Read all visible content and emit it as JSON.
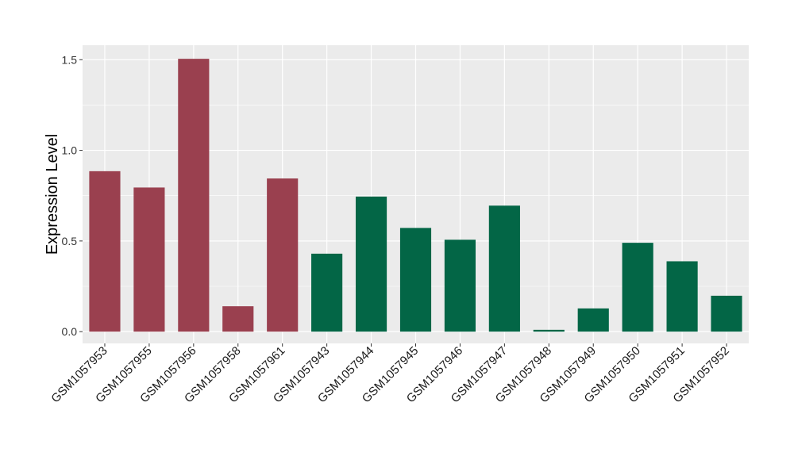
{
  "chart_data": {
    "type": "bar",
    "title": "",
    "xlabel": "",
    "ylabel": "Expression Level",
    "ylim": [
      -0.065,
      1.58
    ],
    "y_ticks": [
      0.0,
      0.5,
      1.0,
      1.5
    ],
    "y_tick_labels": [
      "0.0",
      "0.5",
      "1.0",
      "1.5"
    ],
    "grid": true,
    "categories": [
      "GSM1057953",
      "GSM1057955",
      "GSM1057956",
      "GSM1057958",
      "GSM1057961",
      "GSM1057943",
      "GSM1057944",
      "GSM1057945",
      "GSM1057946",
      "GSM1057947",
      "GSM1057948",
      "GSM1057949",
      "GSM1057950",
      "GSM1057951",
      "GSM1057952"
    ],
    "values": [
      0.885,
      0.795,
      1.505,
      0.14,
      0.845,
      0.43,
      0.745,
      0.572,
      0.507,
      0.695,
      0.01,
      0.128,
      0.49,
      0.388,
      0.198
    ],
    "bar_colors": [
      "#9a404f",
      "#9a404f",
      "#9a404f",
      "#9a404f",
      "#9a404f",
      "#036646",
      "#036646",
      "#036646",
      "#036646",
      "#036646",
      "#036646",
      "#036646",
      "#036646",
      "#036646",
      "#036646"
    ],
    "panel_background": "#ebebeb",
    "grid_color": "#ffffff"
  }
}
